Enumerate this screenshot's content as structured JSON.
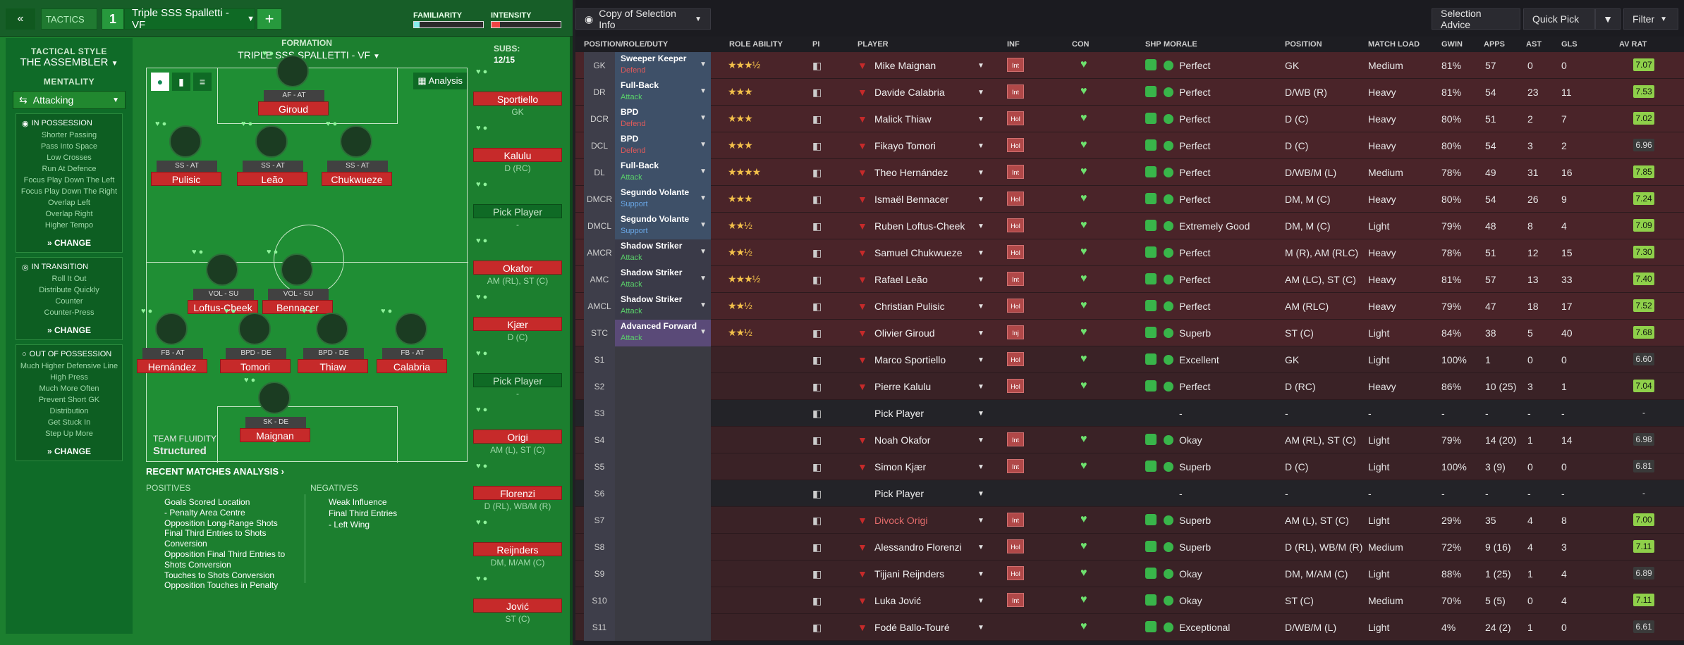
{
  "topbar": {
    "back": "«",
    "tab_label": "TACTICS",
    "slot": "1",
    "tactic_name": "Triple SSS Spalletti - VF",
    "add": "+",
    "familiarity": "FAMILIARITY",
    "intensity": "INTENSITY"
  },
  "formation": {
    "label": "FORMATION",
    "name": "TRIPLE SSS SPALLETTI - VF",
    "subs_label": "SUBS:",
    "subs_value": "12/15",
    "analysis": "Analysis"
  },
  "sidebar": {
    "style_label": "TACTICAL STYLE",
    "style_value": "THE ASSEMBLER",
    "mentality_label": "MENTALITY",
    "mentality_value": "Attacking",
    "in_possession": {
      "title": "IN POSSESSION",
      "items": [
        "Shorter Passing",
        "Pass Into Space",
        "Low Crosses",
        "Run At Defence",
        "Focus Play Down The Left",
        "Focus Play Down The Right",
        "Overlap Left",
        "Overlap Right",
        "Higher Tempo"
      ]
    },
    "in_transition": {
      "title": "IN TRANSITION",
      "items": [
        "Roll It Out",
        "Distribute Quickly",
        "Counter",
        "Counter-Press"
      ]
    },
    "out_possession": {
      "title": "OUT OF POSSESSION",
      "items": [
        "Much Higher Defensive Line",
        "High Press",
        "Much More Often",
        "Prevent Short GK",
        "Distribution",
        "Get Stuck In",
        "Step Up More"
      ]
    },
    "change": "CHANGE"
  },
  "pitch": {
    "players": [
      {
        "role": "AF - AT",
        "name": "Giroud"
      },
      {
        "role": "SS - AT",
        "name": "Pulisic"
      },
      {
        "role": "SS - AT",
        "name": "Leão"
      },
      {
        "role": "SS - AT",
        "name": "Chukwueze"
      },
      {
        "role": "VOL - SU",
        "name": "Loftus-Cheek"
      },
      {
        "role": "VOL - SU",
        "name": "Bennacer"
      },
      {
        "role": "FB - AT",
        "name": "Hernández"
      },
      {
        "role": "BPD - DE",
        "name": "Tomori"
      },
      {
        "role": "BPD - DE",
        "name": "Thiaw"
      },
      {
        "role": "FB - AT",
        "name": "Calabria"
      },
      {
        "role": "SK - DE",
        "name": "Maignan"
      }
    ],
    "fluidity_label": "TEAM FLUIDITY",
    "fluidity_value": "Structured"
  },
  "analysis": {
    "title": "RECENT MATCHES ANALYSIS ›",
    "positives_label": "POSITIVES",
    "negatives_label": "NEGATIVES",
    "positives": [
      "Goals Scored Location",
      "- Penalty Area Centre",
      "Opposition Long-Range Shots",
      "Final Third Entries to Shots",
      "Conversion",
      "Opposition Final Third Entries to",
      "Shots Conversion",
      "Touches to Shots Conversion",
      "Opposition Touches in Penalty"
    ],
    "negatives": [
      "Weak Influence",
      "Final Third Entries",
      "- Left Wing"
    ]
  },
  "subs": [
    {
      "name": "Sportiello",
      "pos": "GK"
    },
    {
      "name": "Kalulu",
      "pos": "D (RC)"
    },
    {
      "name": "Pick Player",
      "pos": "-"
    },
    {
      "name": "Okafor",
      "pos": "AM (RL), ST (C)"
    },
    {
      "name": "Kjær",
      "pos": "D (C)"
    },
    {
      "name": "Pick Player",
      "pos": "-"
    },
    {
      "name": "Origi",
      "pos": "AM (L), ST (C)"
    },
    {
      "name": "Florenzi",
      "pos": "D (RL), WB/M (R)"
    },
    {
      "name": "Reijnders",
      "pos": "DM, M/AM (C)"
    },
    {
      "name": "Jović",
      "pos": "ST (C)"
    }
  ],
  "rightbar": {
    "copy": "Copy of Selection Info",
    "advice": "Selection Advice",
    "quick": "Quick Pick",
    "filter": "Filter"
  },
  "columns": [
    "POSITION/ROLE/DUTY",
    "ROLE ABILITY",
    "PI",
    "PLAYER",
    "INF",
    "CON",
    "SHP",
    "MORALE",
    "POSITION",
    "MATCH LOAD",
    "GWIN",
    "APPS",
    "AST",
    "GLS",
    "AV RAT"
  ],
  "rows": [
    {
      "pos": "GK",
      "role": "Sweeper Keeper",
      "duty": "Defend",
      "stars": "★★★½",
      "player": "Mike Maignan",
      "inf": "Int",
      "morale": "Perfect",
      "position": "GK",
      "load": "Medium",
      "gwin": "81%",
      "apps": "57",
      "ast": "0",
      "gls": "0",
      "avr": "7.07"
    },
    {
      "pos": "DR",
      "role": "Full-Back",
      "duty": "Attack",
      "stars": "★★★",
      "player": "Davide Calabria",
      "inf": "Int",
      "morale": "Perfect",
      "position": "D/WB (R)",
      "load": "Heavy",
      "gwin": "81%",
      "apps": "54",
      "ast": "23",
      "gls": "11",
      "avr": "7.53"
    },
    {
      "pos": "DCR",
      "role": "BPD",
      "duty": "Defend",
      "stars": "★★★",
      "player": "Malick Thiaw",
      "inf": "Hol",
      "morale": "Perfect",
      "position": "D (C)",
      "load": "Heavy",
      "gwin": "80%",
      "apps": "51",
      "ast": "2",
      "gls": "7",
      "avr": "7.02"
    },
    {
      "pos": "DCL",
      "role": "BPD",
      "duty": "Defend",
      "stars": "★★★",
      "player": "Fikayo Tomori",
      "inf": "Hol",
      "morale": "Perfect",
      "position": "D (C)",
      "load": "Heavy",
      "gwin": "80%",
      "apps": "54",
      "ast": "3",
      "gls": "2",
      "avr": "6.96"
    },
    {
      "pos": "DL",
      "role": "Full-Back",
      "duty": "Attack",
      "stars": "★★★★",
      "player": "Theo Hernández",
      "inf": "Int",
      "morale": "Perfect",
      "position": "D/WB/M (L)",
      "load": "Medium",
      "gwin": "78%",
      "apps": "49",
      "ast": "31",
      "gls": "16",
      "avr": "7.85"
    },
    {
      "pos": "DMCR",
      "role": "Segundo Volante",
      "duty": "Support",
      "stars": "★★★",
      "player": "Ismaël Bennacer",
      "inf": "Hol",
      "morale": "Perfect",
      "position": "DM, M (C)",
      "load": "Heavy",
      "gwin": "80%",
      "apps": "54",
      "ast": "26",
      "gls": "9",
      "avr": "7.24"
    },
    {
      "pos": "DMCL",
      "role": "Segundo Volante",
      "duty": "Support",
      "stars": "★★½",
      "player": "Ruben Loftus-Cheek",
      "inf": "Hol",
      "morale": "Extremely Good",
      "position": "DM, M (C)",
      "load": "Light",
      "gwin": "79%",
      "apps": "48",
      "ast": "8",
      "gls": "4",
      "avr": "7.09"
    },
    {
      "pos": "AMCR",
      "role": "Shadow Striker",
      "duty": "Attack",
      "stars": "★★½",
      "player": "Samuel Chukwueze",
      "inf": "Hol",
      "morale": "Perfect",
      "position": "M (R), AM (RLC)",
      "load": "Heavy",
      "gwin": "78%",
      "apps": "51",
      "ast": "12",
      "gls": "15",
      "avr": "7.30"
    },
    {
      "pos": "AMC",
      "role": "Shadow Striker",
      "duty": "Attack",
      "stars": "★★★½",
      "player": "Rafael Leão",
      "inf": "Int",
      "morale": "Perfect",
      "position": "AM (LC), ST (C)",
      "load": "Heavy",
      "gwin": "81%",
      "apps": "57",
      "ast": "13",
      "gls": "33",
      "avr": "7.40"
    },
    {
      "pos": "AMCL",
      "role": "Shadow Striker",
      "duty": "Attack",
      "stars": "★★½",
      "player": "Christian Pulisic",
      "inf": "Hol",
      "morale": "Perfect",
      "position": "AM (RLC)",
      "load": "Heavy",
      "gwin": "79%",
      "apps": "47",
      "ast": "18",
      "gls": "17",
      "avr": "7.52"
    },
    {
      "pos": "STC",
      "role": "Advanced Forward",
      "duty": "Attack",
      "stars": "★★½",
      "player": "Olivier Giroud",
      "inf": "Inj",
      "morale": "Superb",
      "position": "ST (C)",
      "load": "Light",
      "gwin": "84%",
      "apps": "38",
      "ast": "5",
      "gls": "40",
      "avr": "7.68"
    },
    {
      "pos": "S1",
      "role": "",
      "duty": "",
      "stars": "",
      "player": "Marco Sportiello",
      "inf": "Hol",
      "morale": "Excellent",
      "position": "GK",
      "load": "Light",
      "gwin": "100%",
      "apps": "1",
      "ast": "0",
      "gls": "0",
      "avr": "6.60"
    },
    {
      "pos": "S2",
      "role": "",
      "duty": "",
      "stars": "",
      "player": "Pierre Kalulu",
      "inf": "Hol",
      "morale": "Perfect",
      "position": "D (RC)",
      "load": "Heavy",
      "gwin": "86%",
      "apps": "10 (25)",
      "ast": "3",
      "gls": "1",
      "avr": "7.04"
    },
    {
      "pos": "S3",
      "role": "",
      "duty": "",
      "stars": "",
      "player": "Pick Player",
      "inf": "",
      "morale": "-",
      "position": "-",
      "load": "-",
      "gwin": "-",
      "apps": "-",
      "ast": "-",
      "gls": "-",
      "avr": "-"
    },
    {
      "pos": "S4",
      "role": "",
      "duty": "",
      "stars": "",
      "player": "Noah Okafor",
      "inf": "Int",
      "morale": "Okay",
      "position": "AM (RL), ST (C)",
      "load": "Light",
      "gwin": "79%",
      "apps": "14 (20)",
      "ast": "1",
      "gls": "14",
      "avr": "6.98"
    },
    {
      "pos": "S5",
      "role": "",
      "duty": "",
      "stars": "",
      "player": "Simon Kjær",
      "inf": "Int",
      "morale": "Superb",
      "position": "D (C)",
      "load": "Light",
      "gwin": "100%",
      "apps": "3 (9)",
      "ast": "0",
      "gls": "0",
      "avr": "6.81"
    },
    {
      "pos": "S6",
      "role": "",
      "duty": "",
      "stars": "",
      "player": "Pick Player",
      "inf": "",
      "morale": "-",
      "position": "-",
      "load": "-",
      "gwin": "-",
      "apps": "-",
      "ast": "-",
      "gls": "-",
      "avr": "-"
    },
    {
      "pos": "S7",
      "role": "",
      "duty": "",
      "stars": "",
      "player": "Divock Origi",
      "inf": "Int",
      "morale": "Superb",
      "position": "AM (L), ST (C)",
      "load": "Light",
      "gwin": "29%",
      "apps": "35",
      "ast": "4",
      "gls": "8",
      "avr": "7.00"
    },
    {
      "pos": "S8",
      "role": "",
      "duty": "",
      "stars": "",
      "player": "Alessandro Florenzi",
      "inf": "Hol",
      "morale": "Superb",
      "position": "D (RL), WB/M (R)",
      "load": "Medium",
      "gwin": "72%",
      "apps": "9 (16)",
      "ast": "4",
      "gls": "3",
      "avr": "7.11"
    },
    {
      "pos": "S9",
      "role": "",
      "duty": "",
      "stars": "",
      "player": "Tijjani Reijnders",
      "inf": "Hol",
      "morale": "Okay",
      "position": "DM, M/AM (C)",
      "load": "Light",
      "gwin": "88%",
      "apps": "1 (25)",
      "ast": "1",
      "gls": "4",
      "avr": "6.89"
    },
    {
      "pos": "S10",
      "role": "",
      "duty": "",
      "stars": "",
      "player": "Luka Jović",
      "inf": "Int",
      "morale": "Okay",
      "position": "ST (C)",
      "load": "Medium",
      "gwin": "70%",
      "apps": "5 (5)",
      "ast": "0",
      "gls": "4",
      "avr": "7.11"
    },
    {
      "pos": "S11",
      "role": "",
      "duty": "",
      "stars": "",
      "player": "Fodé Ballo-Touré",
      "inf": "",
      "morale": "Exceptional",
      "position": "D/WB/M (L)",
      "load": "Light",
      "gwin": "4%",
      "apps": "24 (2)",
      "ast": "1",
      "gls": "0",
      "avr": "6.61"
    }
  ]
}
